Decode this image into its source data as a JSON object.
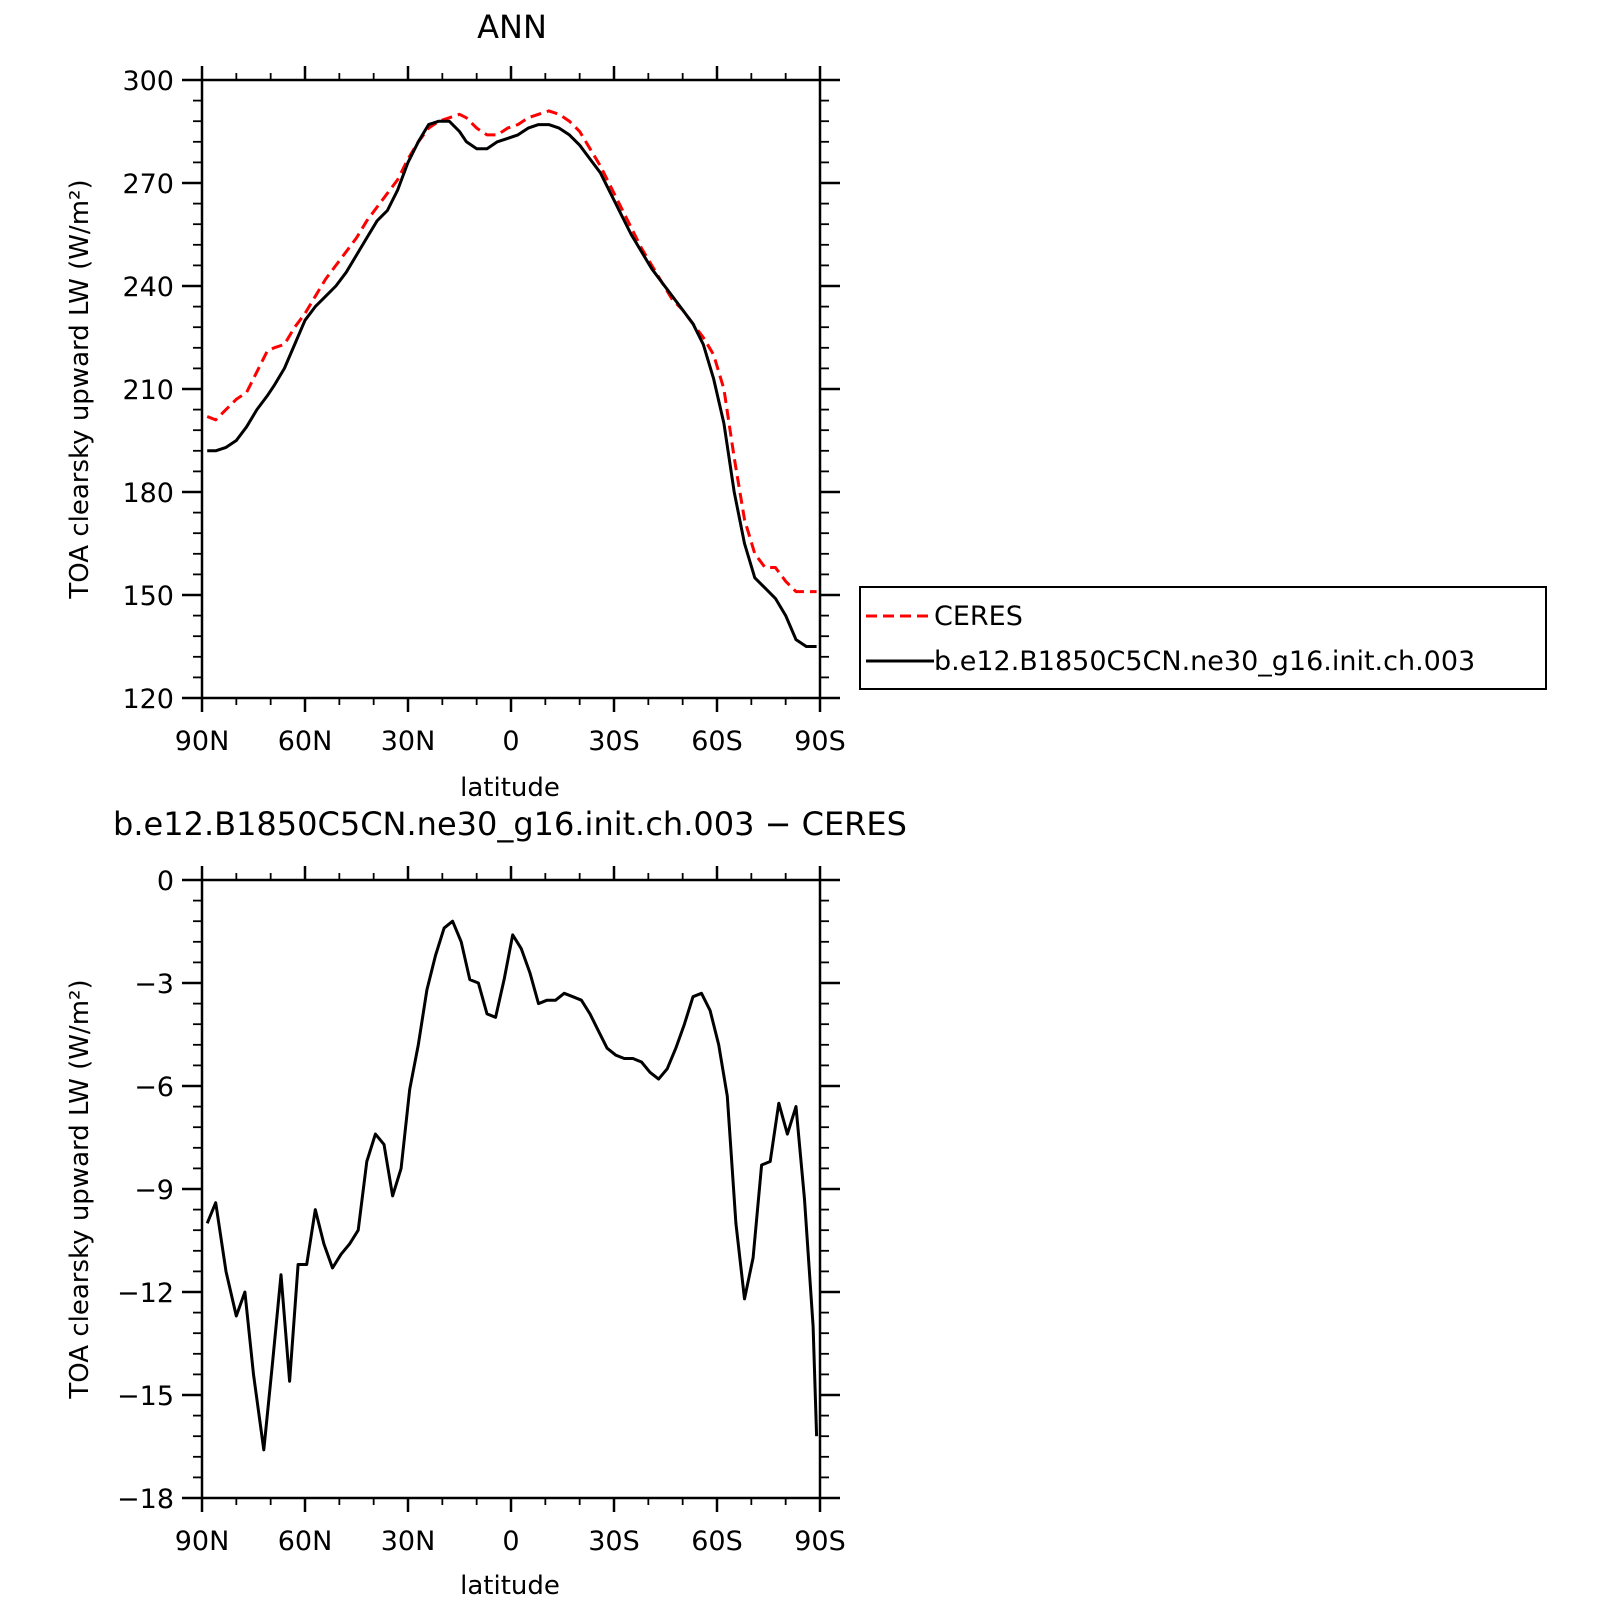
{
  "chart_data": [
    {
      "type": "line",
      "title": "ANN",
      "xlabel": "latitude",
      "ylabel": "TOA clearsky upward LW (W/m²)",
      "xlim": [
        90,
        -90
      ],
      "ylim": [
        120,
        300
      ],
      "x_ticks": [
        90,
        60,
        30,
        0,
        -30,
        -60,
        -90
      ],
      "x_tick_labels": [
        "90N",
        "60N",
        "30N",
        "0",
        "30S",
        "60S",
        "90S"
      ],
      "y_ticks": [
        120,
        150,
        180,
        210,
        240,
        270,
        300
      ],
      "y_tick_labels": [
        "120",
        "150",
        "180",
        "210",
        "240",
        "270",
        "300"
      ],
      "grid": false,
      "legend_position": "outside-right",
      "series": [
        {
          "name": "CERES",
          "color": "#ff0000",
          "style": "dashed",
          "x": [
            88.5,
            86,
            83,
            80,
            77,
            74,
            71,
            69,
            66,
            63,
            60,
            57,
            54,
            51,
            48,
            45,
            42,
            39,
            36,
            33,
            30,
            27,
            24,
            21,
            18,
            15,
            13,
            10,
            7,
            4,
            1,
            -2,
            -5,
            -8,
            -11,
            -14,
            -17,
            -20,
            -23,
            -26,
            -29,
            -32,
            -35,
            -38,
            -41,
            -44,
            -47,
            -50,
            -53,
            -56,
            -59,
            -62,
            -65,
            -68,
            -71,
            -74,
            -77,
            -80,
            -83,
            -86,
            -89
          ],
          "y": [
            202,
            201,
            204,
            207,
            209,
            215,
            221,
            222,
            223,
            228,
            232,
            237,
            242,
            246,
            250,
            254,
            259,
            263,
            267,
            271,
            277,
            282,
            286,
            288,
            289,
            290,
            289,
            286,
            284,
            284,
            286,
            287,
            289,
            290,
            291,
            290,
            288,
            285,
            280,
            275,
            269,
            263,
            257,
            251,
            246,
            241,
            236,
            233,
            229,
            225,
            220,
            210,
            190,
            172,
            162,
            158,
            158,
            154,
            151,
            151,
            151
          ]
        },
        {
          "name": "b.e12.B1850C5CN.ne30_g16.init.ch.003",
          "color": "#000000",
          "style": "solid",
          "x": [
            88.5,
            86,
            83,
            80,
            77,
            74,
            71,
            69,
            66,
            63,
            60,
            57,
            54,
            51,
            48,
            45,
            42,
            39,
            36,
            33,
            30,
            27,
            24,
            21,
            18,
            15,
            13,
            10,
            7,
            4,
            1,
            -2,
            -5,
            -8,
            -11,
            -14,
            -17,
            -20,
            -23,
            -26,
            -29,
            -32,
            -35,
            -38,
            -41,
            -44,
            -47,
            -50,
            -53,
            -56,
            -59,
            -62,
            -65,
            -68,
            -71,
            -74,
            -77,
            -80,
            -83,
            -86,
            -89
          ],
          "y": [
            192,
            192,
            193,
            195,
            199,
            204,
            208,
            211,
            216,
            223,
            230,
            234,
            237,
            240,
            244,
            249,
            254,
            259,
            262,
            268,
            276,
            282,
            287,
            288,
            288,
            285,
            282,
            280,
            280,
            282,
            283,
            284,
            286,
            287,
            287,
            286,
            284,
            281,
            277,
            273,
            267,
            261,
            255,
            250,
            245,
            241,
            237,
            233,
            229,
            223,
            213,
            200,
            180,
            165,
            155,
            152,
            149,
            144,
            137,
            135,
            135
          ]
        }
      ]
    },
    {
      "type": "line",
      "title": "b.e12.B1850C5CN.ne30_g16.init.ch.003 − CERES",
      "xlabel": "latitude",
      "ylabel": "TOA clearsky upward LW (W/m²)",
      "xlim": [
        90,
        -90
      ],
      "ylim": [
        -18,
        0
      ],
      "x_ticks": [
        90,
        60,
        30,
        0,
        -30,
        -60,
        -90
      ],
      "x_tick_labels": [
        "90N",
        "60N",
        "30N",
        "0",
        "30S",
        "60S",
        "90S"
      ],
      "y_ticks": [
        -18,
        -15,
        -12,
        -9,
        -6,
        -3,
        0
      ],
      "y_tick_labels": [
        "−18",
        "−15",
        "−12",
        "−9",
        "−6",
        "−3",
        "0"
      ],
      "grid": false,
      "series": [
        {
          "color": "#000000",
          "style": "solid",
          "x": [
            88.5,
            86,
            83,
            80,
            77.5,
            75,
            72,
            69.5,
            67,
            64.5,
            62,
            59.5,
            57,
            54.5,
            52,
            49.5,
            47,
            44.5,
            42,
            39.5,
            37,
            34.5,
            32,
            29.5,
            27,
            24.5,
            22,
            19.5,
            17,
            14.5,
            12,
            9.5,
            7,
            4.5,
            2,
            -0.5,
            -3,
            -5.5,
            -8,
            -10.5,
            -13,
            -15.5,
            -18,
            -20.5,
            -23,
            -25.5,
            -28,
            -30.5,
            -33,
            -35.5,
            -38,
            -40.5,
            -43,
            -45.5,
            -48,
            -50.5,
            -53,
            -55.5,
            -58,
            -60.5,
            -63,
            -65.5,
            -68,
            -70.5,
            -73,
            -75.5,
            -78,
            -80.5,
            -83,
            -85.5,
            -88,
            -89
          ],
          "y": [
            -10.0,
            -9.4,
            -11.4,
            -12.7,
            -12.0,
            -14.4,
            -16.6,
            -14.1,
            -11.5,
            -14.6,
            -11.2,
            -11.2,
            -9.6,
            -10.6,
            -11.3,
            -10.9,
            -10.6,
            -10.2,
            -8.2,
            -7.4,
            -7.7,
            -9.2,
            -8.4,
            -6.1,
            -4.8,
            -3.2,
            -2.2,
            -1.4,
            -1.2,
            -1.8,
            -2.9,
            -3.0,
            -3.9,
            -4.0,
            -2.9,
            -1.6,
            -2.0,
            -2.7,
            -3.6,
            -3.5,
            -3.5,
            -3.3,
            -3.4,
            -3.5,
            -3.9,
            -4.4,
            -4.9,
            -5.1,
            -5.2,
            -5.2,
            -5.3,
            -5.6,
            -5.8,
            -5.5,
            -4.9,
            -4.2,
            -3.4,
            -3.3,
            -3.8,
            -4.8,
            -6.3,
            -10.0,
            -12.2,
            -11.0,
            -8.3,
            -8.2,
            -6.5,
            -7.4,
            -6.6,
            -9.3,
            -13.0,
            -16.2
          ]
        }
      ]
    }
  ]
}
